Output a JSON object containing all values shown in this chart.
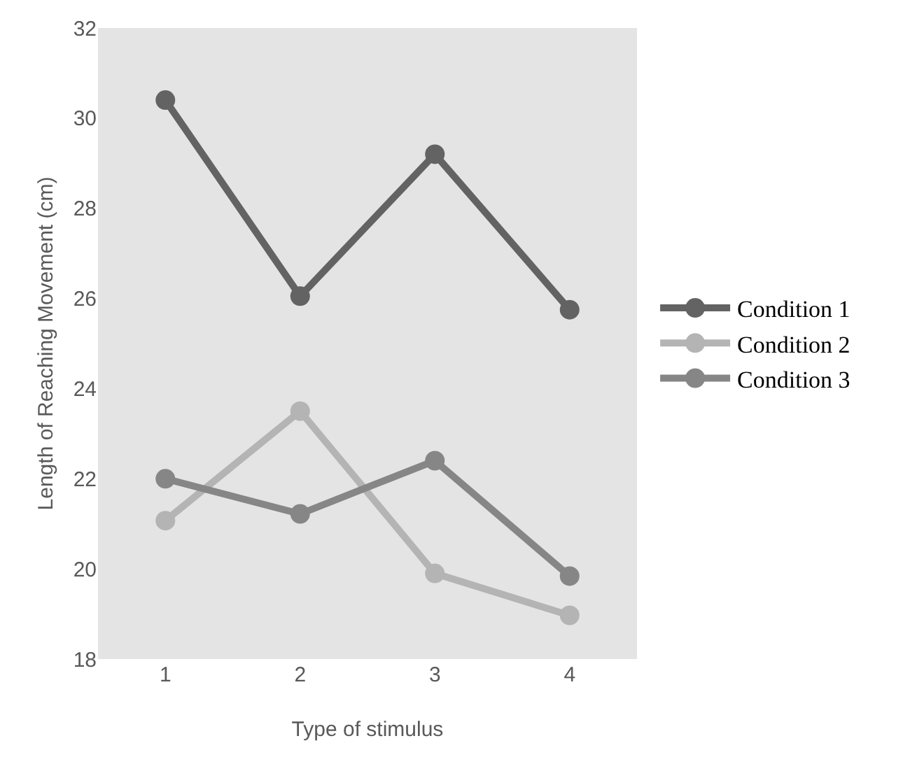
{
  "chart_data": {
    "type": "line",
    "xlabel": "Type of stimulus",
    "ylabel": "Length of Reaching Movement (cm)",
    "categories": [
      "1",
      "2",
      "3",
      "4"
    ],
    "series": [
      {
        "name": "Condition 1",
        "color": "#636363",
        "values": [
          30.4,
          26.05,
          29.2,
          25.75
        ]
      },
      {
        "name": "Condition 2",
        "color": "#b4b4b4",
        "values": [
          21.07,
          23.5,
          19.9,
          18.97
        ]
      },
      {
        "name": "Condition 3",
        "color": "#868686",
        "values": [
          22.0,
          21.22,
          22.4,
          19.84
        ]
      }
    ],
    "ylim": [
      18,
      32
    ],
    "yticks": [
      18,
      20,
      22,
      24,
      26,
      28,
      30,
      32
    ],
    "grid": false,
    "legend": "right",
    "marker": "circle",
    "line_style": "solid"
  }
}
